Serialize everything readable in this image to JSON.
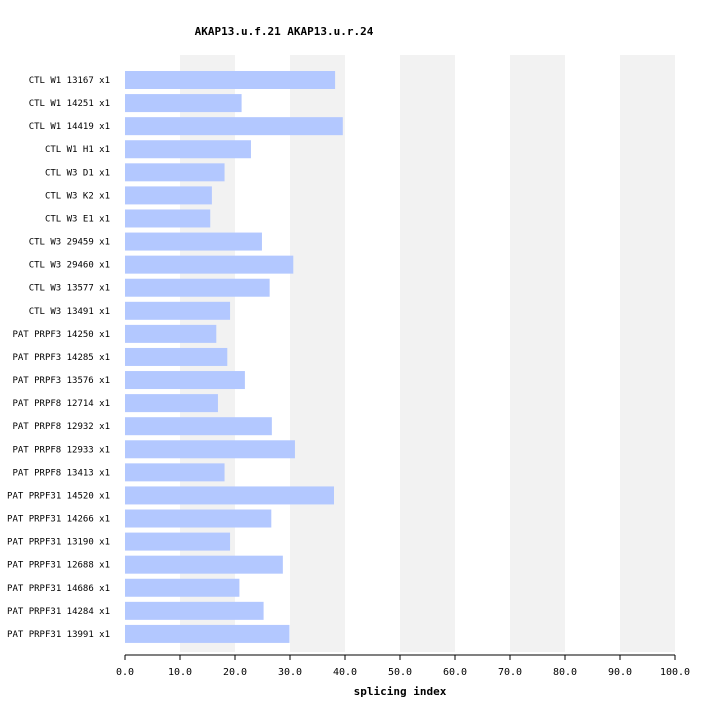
{
  "chart_data": {
    "type": "bar",
    "orientation": "horizontal",
    "title": "AKAP13.u.f.21  AKAP13.u.r.24",
    "xlabel": "splicing index",
    "xlim": [
      0,
      100
    ],
    "xticks": [
      "0.0",
      "10.0",
      "20.0",
      "30.0",
      "40.0",
      "50.0",
      "60.0",
      "70.0",
      "80.0",
      "90.0",
      "100.0"
    ],
    "grid": "alternating vertical bands",
    "bar_color": "#b3c8ff",
    "band_color": "#f2f2f2",
    "categories": [
      "CTL W1 13167 x1",
      "CTL W1 14251 x1",
      "CTL W1 14419 x1",
      "CTL W1 H1 x1",
      "CTL W3 D1 x1",
      "CTL W3 K2 x1",
      "CTL W3 E1 x1",
      "CTL W3 29459 x1",
      "CTL W3 29460 x1",
      "CTL W3 13577 x1",
      "CTL W3 13491 x1",
      "PAT PRPF3 14250 x1",
      "PAT PRPF3 14285 x1",
      "PAT PRPF3 13576 x1",
      "PAT PRPF8 12714 x1",
      "PAT PRPF8 12932 x1",
      "PAT PRPF8 12933 x1",
      "PAT PRPF8 13413 x1",
      "PAT PRPF31 14520 x1",
      "PAT PRPF31 14266 x1",
      "PAT PRPF31 13190 x1",
      "PAT PRPF31 12688 x1",
      "PAT PRPF31 14686 x1",
      "PAT PRPF31 14284 x1",
      "PAT PRPF31 13991 x1"
    ],
    "values": [
      38.2,
      21.2,
      39.6,
      22.9,
      18.1,
      15.8,
      15.5,
      24.9,
      30.6,
      26.3,
      19.1,
      16.6,
      18.6,
      21.8,
      16.9,
      26.7,
      30.9,
      18.1,
      38.0,
      26.6,
      19.1,
      28.7,
      20.8,
      25.2,
      29.9
    ]
  }
}
